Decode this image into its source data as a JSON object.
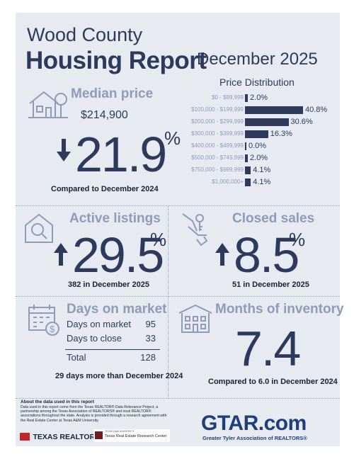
{
  "header": {
    "county": "Wood County",
    "report": "Housing Report",
    "month": "December 2025"
  },
  "price_distribution": {
    "title": "Price Distribution",
    "rows": [
      {
        "label": "$0 - $99,999",
        "value": "2.0%",
        "pct": 2.0
      },
      {
        "label": "$100,000 - $199,999",
        "value": "40.8%",
        "pct": 40.8
      },
      {
        "label": "$200,000 - $299,999",
        "value": "30.6%",
        "pct": 30.6
      },
      {
        "label": "$300,000 - $399,999",
        "value": "16.3%",
        "pct": 16.3
      },
      {
        "label": "$400,000 - $499,999",
        "value": "0.0%",
        "pct": 0.0
      },
      {
        "label": "$500,000 - $749,999",
        "value": "2.0%",
        "pct": 2.0
      },
      {
        "label": "$750,000 - $999,999",
        "value": "4.1%",
        "pct": 4.1
      },
      {
        "label": "$1,000,000+",
        "value": "4.1%",
        "pct": 4.1
      }
    ]
  },
  "median_price": {
    "title": "Median price",
    "price": "$214,900",
    "change": "21.9",
    "percent": "%",
    "direction": "down",
    "caption": "Compared to December 2024"
  },
  "active_listings": {
    "title": "Active listings",
    "change": "29.5",
    "percent": "%",
    "direction": "up",
    "caption": "382 in December 2025"
  },
  "closed_sales": {
    "title": "Closed sales",
    "change": "8.5",
    "percent": "%",
    "direction": "up",
    "caption": "51 in December 2025"
  },
  "days_on_market": {
    "title": "Days on market",
    "rows": [
      {
        "label": "Days on market",
        "value": "95"
      },
      {
        "label": "Days to close",
        "value": "33"
      }
    ],
    "total_label": "Total",
    "total_value": "128",
    "caption": "29 days more than December 2024"
  },
  "months_inventory": {
    "title": "Months of inventory",
    "value": "7.4",
    "caption": "Compared to 6.0 in December 2024"
  },
  "footer": {
    "heading": "About the data used in this report",
    "text": "Data used in this report come from the Texas REALTOR® Data Relevance Project, a partnership among the Texas Association of REALTORS® and local REALTOR® associations throughout the state. Analysis is provided through a research agreement with the Real Estate Center at Texas A&M University.",
    "logo_tr": "TEXAS REALTORS",
    "logo_tamu_small": "TEXAS A&M UNIVERSITY",
    "logo_tamu": "Texas Real Estate Research Center",
    "gtar_main": "GTAR.com",
    "gtar_sub": "Greater Tyler Association of REALTORS®"
  },
  "colors": {
    "navy": "#2e3a5c",
    "light_blue": "#8f9bb8",
    "card_bg": "#e7eaf1",
    "red": "#c0262d"
  }
}
